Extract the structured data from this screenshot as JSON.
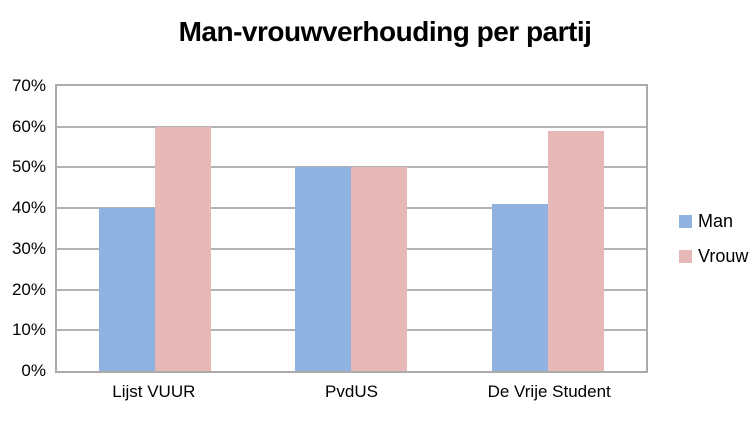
{
  "chart_data": {
    "type": "bar",
    "title": "Man-vrouwverhouding per partij",
    "categories": [
      "Lijst VUUR",
      "PvdUS",
      "De Vrije Student"
    ],
    "series": [
      {
        "name": "Man",
        "color": "#8fb2e0",
        "values": [
          40,
          50,
          41
        ]
      },
      {
        "name": "Vrouw",
        "color": "#e6b9b8",
        "values": [
          60,
          50,
          59
        ]
      }
    ],
    "y_axis": {
      "min": 0,
      "max": 70,
      "step": 10,
      "tick_labels": [
        "0%",
        "10%",
        "20%",
        "30%",
        "40%",
        "50%",
        "60%",
        "70%"
      ]
    },
    "xlabel": "",
    "ylabel": "",
    "grid": true,
    "legend_position": "right",
    "colors": {
      "gridline": "#b3b3b3",
      "plot_border": "#ababab",
      "text": "#000000",
      "background": "#ffffff"
    }
  }
}
